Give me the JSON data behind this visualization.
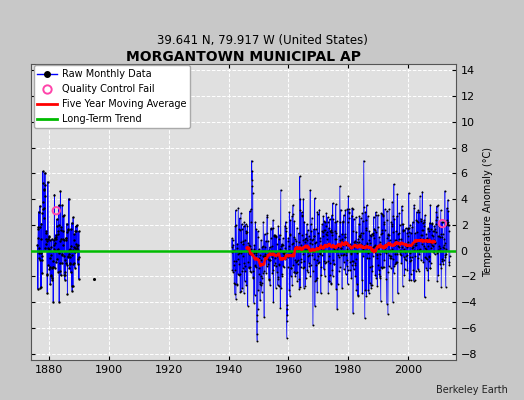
{
  "title": "MORGANTOWN MUNICIPAL AP",
  "subtitle": "39.641 N, 79.917 W (United States)",
  "ylabel": "Temperature Anomaly (°C)",
  "credit": "Berkeley Earth",
  "xlim": [
    1874,
    2016
  ],
  "ylim": [
    -8.5,
    14.5
  ],
  "yticks": [
    -8,
    -6,
    -4,
    -2,
    0,
    2,
    4,
    6,
    8,
    10,
    12,
    14
  ],
  "xticks": [
    1880,
    1900,
    1920,
    1940,
    1960,
    1980,
    2000
  ],
  "bg_color": "#c8c8c8",
  "plot_bg_color": "#e0e0e0",
  "grid_color": "#ffffff",
  "line_color": "#0000ff",
  "dot_color": "#000000",
  "ma_color": "#ff0000",
  "trend_color": "#00bb00",
  "qc_color": "#ff44aa",
  "early_start": 1876,
  "early_end": 1890,
  "dense_start": 1941,
  "dense_end": 2014,
  "isolated_year": 1895,
  "isolated_val": -2.2,
  "qc1_year": 1882.3,
  "qc1_val": 3.1,
  "qc2_year": 2011.5,
  "qc2_val": 2.1
}
